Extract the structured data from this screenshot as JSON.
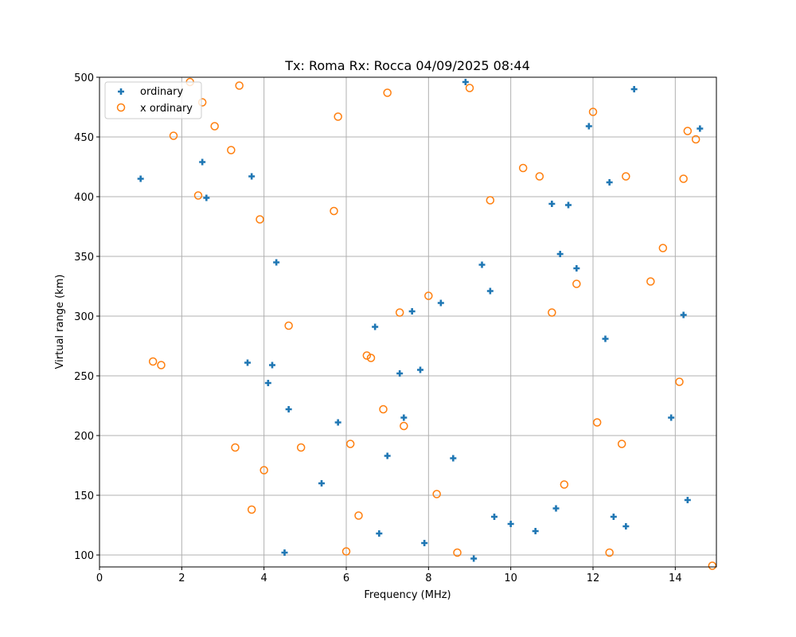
{
  "chart_data": {
    "type": "scatter",
    "title": "Tx: Roma Rx: Rocca 04/09/2025 08:44",
    "xlabel": "Frequency (MHz)",
    "ylabel": "Virtual range (km)",
    "xlim": [
      0,
      15
    ],
    "ylim": [
      90,
      500
    ],
    "xticks": [
      0,
      2,
      4,
      6,
      8,
      10,
      12,
      14
    ],
    "yticks": [
      100,
      150,
      200,
      250,
      300,
      350,
      400,
      450,
      500
    ],
    "grid": true,
    "legend_position": "upper left",
    "series": [
      {
        "name": "ordinary",
        "marker": "plus",
        "color": "#1f77b4",
        "points": [
          [
            1.0,
            415
          ],
          [
            2.5,
            429
          ],
          [
            2.6,
            399
          ],
          [
            3.7,
            417
          ],
          [
            4.3,
            345
          ],
          [
            3.6,
            261
          ],
          [
            4.2,
            259
          ],
          [
            4.1,
            244
          ],
          [
            4.6,
            222
          ],
          [
            4.5,
            102
          ],
          [
            5.4,
            160
          ],
          [
            5.8,
            211
          ],
          [
            6.7,
            291
          ],
          [
            6.8,
            118
          ],
          [
            7.0,
            183
          ],
          [
            7.3,
            252
          ],
          [
            7.4,
            215
          ],
          [
            7.6,
            304
          ],
          [
            7.8,
            255
          ],
          [
            7.9,
            110
          ],
          [
            8.3,
            311
          ],
          [
            8.6,
            181
          ],
          [
            8.9,
            496
          ],
          [
            9.1,
            97
          ],
          [
            9.3,
            343
          ],
          [
            9.5,
            321
          ],
          [
            9.6,
            132
          ],
          [
            10.0,
            126
          ],
          [
            10.6,
            120
          ],
          [
            11.0,
            394
          ],
          [
            11.1,
            139
          ],
          [
            11.2,
            352
          ],
          [
            11.4,
            393
          ],
          [
            11.6,
            340
          ],
          [
            11.9,
            459
          ],
          [
            12.3,
            281
          ],
          [
            12.4,
            412
          ],
          [
            12.5,
            132
          ],
          [
            12.8,
            124
          ],
          [
            13.0,
            490
          ],
          [
            13.9,
            215
          ],
          [
            14.2,
            301
          ],
          [
            14.3,
            146
          ],
          [
            14.6,
            457
          ]
        ]
      },
      {
        "name": "x ordinary",
        "marker": "open-circle",
        "color": "#ff7f0e",
        "points": [
          [
            1.3,
            262
          ],
          [
            1.5,
            259
          ],
          [
            1.8,
            451
          ],
          [
            2.2,
            496
          ],
          [
            2.4,
            401
          ],
          [
            2.5,
            479
          ],
          [
            2.8,
            459
          ],
          [
            3.2,
            439
          ],
          [
            3.3,
            190
          ],
          [
            3.4,
            493
          ],
          [
            3.7,
            138
          ],
          [
            3.9,
            381
          ],
          [
            4.0,
            171
          ],
          [
            4.6,
            292
          ],
          [
            4.9,
            190
          ],
          [
            5.7,
            388
          ],
          [
            5.8,
            467
          ],
          [
            6.0,
            103
          ],
          [
            6.1,
            193
          ],
          [
            6.3,
            133
          ],
          [
            6.5,
            267
          ],
          [
            6.6,
            265
          ],
          [
            6.9,
            222
          ],
          [
            7.0,
            487
          ],
          [
            7.3,
            303
          ],
          [
            7.4,
            208
          ],
          [
            8.0,
            317
          ],
          [
            8.2,
            151
          ],
          [
            8.7,
            102
          ],
          [
            9.0,
            491
          ],
          [
            9.5,
            397
          ],
          [
            10.3,
            424
          ],
          [
            10.7,
            417
          ],
          [
            11.0,
            303
          ],
          [
            11.3,
            159
          ],
          [
            11.6,
            327
          ],
          [
            12.0,
            471
          ],
          [
            12.1,
            211
          ],
          [
            12.4,
            102
          ],
          [
            12.7,
            193
          ],
          [
            12.8,
            417
          ],
          [
            13.4,
            329
          ],
          [
            13.7,
            357
          ],
          [
            14.1,
            245
          ],
          [
            14.2,
            415
          ],
          [
            14.3,
            455
          ],
          [
            14.5,
            448
          ],
          [
            14.9,
            91
          ]
        ]
      }
    ]
  }
}
